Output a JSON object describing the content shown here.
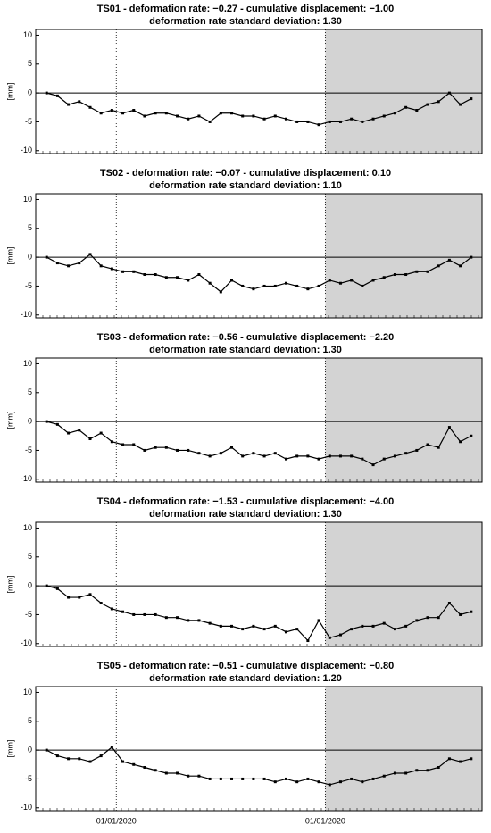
{
  "chart_data": [
    {
      "type": "line",
      "title": "TS01 - deformation rate: −0.27 - cumulative displacement: −1.00",
      "subtitle": "deformation rate standard deviation: 1.30",
      "ylabel": "[mm]",
      "color": "#000000",
      "shade_color": "#d3d3d3",
      "values": [
        0,
        -0.5,
        -2,
        -1.5,
        -2.5,
        -3.5,
        -3,
        -3.5,
        -3,
        -4,
        -3.5,
        -3.5,
        -4,
        -4.5,
        -4,
        -5,
        -3.5,
        -3.5,
        -4,
        -4,
        -4.5,
        -4,
        -4.5,
        -5,
        -5,
        -5.5,
        -5,
        -5,
        -4.5,
        -5,
        -4.5,
        -4,
        -3.5,
        -2.5,
        -3,
        -2,
        -1.5,
        0,
        -2,
        -1
      ],
      "ylim": [
        -10.5,
        11
      ],
      "yticks": [
        10,
        5,
        0,
        -5,
        -10
      ],
      "xlim": [
        -1,
        40
      ]
    },
    {
      "type": "line",
      "title": "TS02 - deformation rate: −0.07 - cumulative displacement: 0.10",
      "subtitle": "deformation rate standard deviation: 1.10",
      "ylabel": "[mm]",
      "color": "#000000",
      "shade_color": "#d3d3d3",
      "values": [
        0,
        -1,
        -1.5,
        -1,
        0.5,
        -1.5,
        -2,
        -2.5,
        -2.5,
        -3,
        -3,
        -3.5,
        -3.5,
        -4,
        -3,
        -4.5,
        -6,
        -4,
        -5,
        -5.5,
        -5,
        -5,
        -4.5,
        -5,
        -5.5,
        -5,
        -4,
        -4.5,
        -4,
        -5,
        -4,
        -3.5,
        -3,
        -3,
        -2.5,
        -2.5,
        -1.5,
        -0.5,
        -1.5,
        0
      ],
      "ylim": [
        -10.5,
        11
      ],
      "yticks": [
        10,
        5,
        0,
        -5,
        -10
      ],
      "xlim": [
        -1,
        40
      ]
    },
    {
      "type": "line",
      "title": "TS03 - deformation rate: −0.56 - cumulative displacement: −2.20",
      "subtitle": "deformation rate standard deviation: 1.30",
      "ylabel": "[mm]",
      "color": "#000000",
      "shade_color": "#d3d3d3",
      "values": [
        0,
        -0.5,
        -2,
        -1.5,
        -3,
        -2,
        -3.5,
        -4,
        -4,
        -5,
        -4.5,
        -4.5,
        -5,
        -5,
        -5.5,
        -6,
        -5.5,
        -4.5,
        -6,
        -5.5,
        -6,
        -5.5,
        -6.5,
        -6,
        -6,
        -6.5,
        -6,
        -6,
        -6,
        -6.5,
        -7.5,
        -6.5,
        -6,
        -5.5,
        -5,
        -4,
        -4.5,
        -1,
        -3.5,
        -2.5
      ],
      "ylim": [
        -10.5,
        11
      ],
      "yticks": [
        10,
        5,
        0,
        -5,
        -10
      ],
      "xlim": [
        -1,
        40
      ]
    },
    {
      "type": "line",
      "title": "TS04 - deformation rate: −1.53 - cumulative displacement: −4.00",
      "subtitle": "deformation rate standard deviation: 1.30",
      "ylabel": "[mm]",
      "color": "#000000",
      "shade_color": "#d3d3d3",
      "values": [
        0,
        -0.5,
        -2,
        -2,
        -1.5,
        -3,
        -4,
        -4.5,
        -5,
        -5,
        -5,
        -5.5,
        -5.5,
        -6,
        -6,
        -6.5,
        -7,
        -7,
        -7.5,
        -7,
        -7.5,
        -7,
        -8,
        -7.5,
        -9.5,
        -6,
        -9,
        -8.5,
        -7.5,
        -7,
        -7,
        -6.5,
        -7.5,
        -7,
        -6,
        -5.5,
        -5.5,
        -3,
        -5,
        -4.5
      ],
      "ylim": [
        -10.5,
        11
      ],
      "yticks": [
        10,
        5,
        0,
        -5,
        -10
      ],
      "xlim": [
        -1,
        40
      ]
    },
    {
      "type": "line",
      "title": "TS05 - deformation rate: −0.51 - cumulative displacement: −0.80",
      "subtitle": "deformation rate standard deviation: 1.20",
      "ylabel": "[mm]",
      "color": "#000000",
      "shade_color": "#d3d3d3",
      "values": [
        0,
        -1,
        -1.5,
        -1.5,
        -2,
        -1,
        0.5,
        -2,
        -2.5,
        -3,
        -3.5,
        -4,
        -4,
        -4.5,
        -4.5,
        -5,
        -5,
        -5,
        -5,
        -5,
        -5,
        -5.5,
        -5,
        -5.5,
        -5,
        -5.5,
        -6,
        -5.5,
        -5,
        -5.5,
        -5,
        -4.5,
        -4,
        -4,
        -3.5,
        -3.5,
        -3,
        -1.5,
        -2,
        -1.5
      ],
      "ylim": [
        -10.5,
        11
      ],
      "yticks": [
        10,
        5,
        0,
        -5,
        -10
      ],
      "xlim": [
        -1,
        40
      ],
      "xticks": [
        {
          "value": 6.4,
          "label": "01/01/2020"
        },
        {
          "value": 25.6,
          "label": "01/01/2020"
        }
      ]
    }
  ]
}
